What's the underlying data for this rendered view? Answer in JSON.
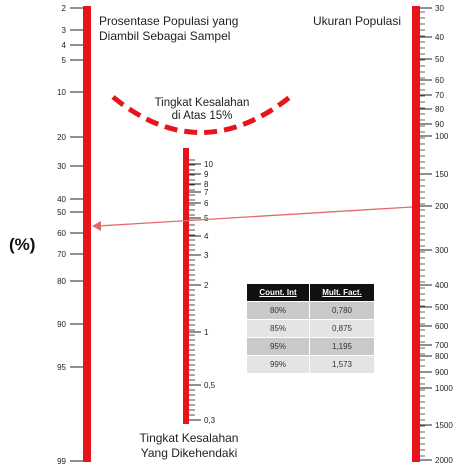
{
  "left_scale": {
    "title_line1": "Prosentase Populasi yang",
    "title_line2": "Diambil Sebagai Sampel",
    "unit_label": "(%)",
    "ticks": [
      {
        "label": "2"
      },
      {
        "label": "3"
      },
      {
        "label": "4"
      },
      {
        "label": "5"
      },
      {
        "label": "10"
      },
      {
        "label": "20"
      },
      {
        "label": "30"
      },
      {
        "label": "40"
      },
      {
        "label": "50"
      },
      {
        "label": "60"
      },
      {
        "label": "70"
      },
      {
        "label": "80"
      },
      {
        "label": "90"
      },
      {
        "label": "95"
      },
      {
        "label": "99"
      }
    ]
  },
  "middle_scale": {
    "title_line1": "Tingkat Kesalahan",
    "title_line2": "Yang Dikehendaki",
    "ticks": [
      {
        "label": "10"
      },
      {
        "label": "9"
      },
      {
        "label": "8"
      },
      {
        "label": "7"
      },
      {
        "label": "6"
      },
      {
        "label": "5"
      },
      {
        "label": "4"
      },
      {
        "label": "3"
      },
      {
        "label": "2"
      },
      {
        "label": "1"
      },
      {
        "label": "0,5"
      },
      {
        "label": "0,3"
      }
    ]
  },
  "right_scale": {
    "title": "Ukuran Populasi",
    "ticks": [
      {
        "label": "30"
      },
      {
        "label": "40"
      },
      {
        "label": "50"
      },
      {
        "label": "60"
      },
      {
        "label": "70"
      },
      {
        "label": "80"
      },
      {
        "label": "90"
      },
      {
        "label": "100"
      },
      {
        "label": "150"
      },
      {
        "label": "200"
      },
      {
        "label": "300"
      },
      {
        "label": "400"
      },
      {
        "label": "500"
      },
      {
        "label": "600"
      },
      {
        "label": "700"
      },
      {
        "label": "800"
      },
      {
        "label": "900"
      },
      {
        "label": "1000"
      },
      {
        "label": "1500"
      },
      {
        "label": "2000"
      }
    ]
  },
  "error_zone": {
    "line1": "Tingkat Kesalahan",
    "line2": "di Atas 15%"
  },
  "confidence_table": {
    "headers": [
      "Count. Int",
      "Mult. Fact."
    ],
    "rows": [
      [
        "80%",
        "0,780"
      ],
      [
        "85%",
        "0,875"
      ],
      [
        "95%",
        "1,195"
      ],
      [
        "99%",
        "1,573"
      ]
    ]
  },
  "colors": {
    "bar": "#e8141b",
    "arrow": "#e36a6a",
    "dash": "#e8141b"
  }
}
